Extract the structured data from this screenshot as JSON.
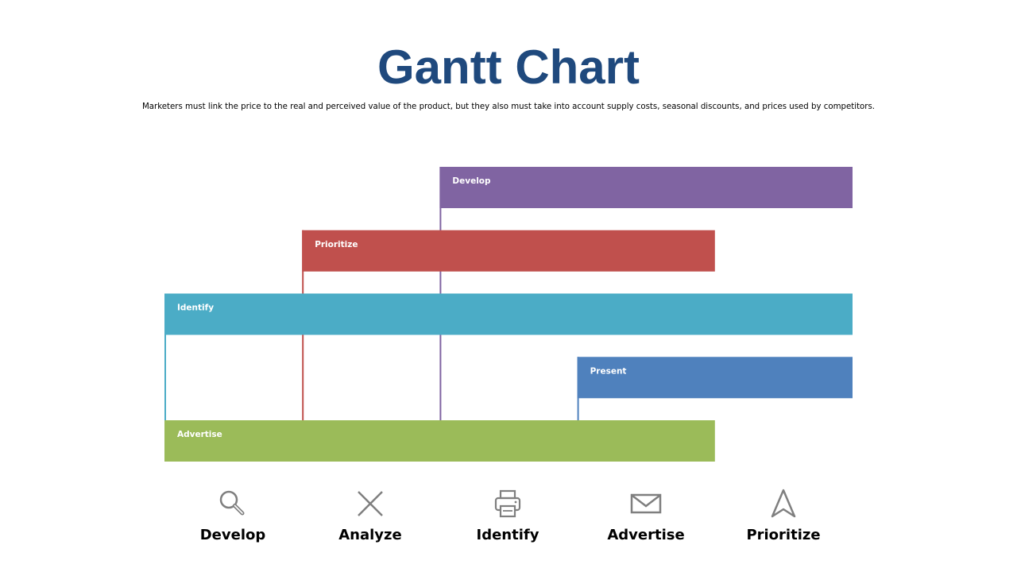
{
  "header": {
    "title": "Gantt Chart",
    "subtitle": "Marketers must link the price to the real and perceived value of the product, but they also must take into account supply costs, seasonal discounts, and prices used by competitors."
  },
  "chart_data": {
    "type": "bar",
    "orientation": "horizontal",
    "grid": false,
    "legend": "none",
    "columns": 5,
    "tasks": [
      {
        "label": "Develop",
        "start": 2,
        "end": 5,
        "color": "#8064A2"
      },
      {
        "label": "Prioritize",
        "start": 1,
        "end": 4,
        "color": "#C0504D"
      },
      {
        "label": "Identify",
        "start": 0,
        "end": 5,
        "color": "#4BACC6"
      },
      {
        "label": "Present",
        "start": 3,
        "end": 5,
        "color": "#4F81BD"
      },
      {
        "label": "Advertise",
        "start": 0,
        "end": 4,
        "color": "#9BBB59"
      }
    ]
  },
  "phases": [
    {
      "label": "Develop",
      "icon": "magnifier-icon"
    },
    {
      "label": "Analyze",
      "icon": "close-x-icon"
    },
    {
      "label": "Identify",
      "icon": "printer-icon"
    },
    {
      "label": "Advertise",
      "icon": "envelope-icon"
    },
    {
      "label": "Prioritize",
      "icon": "navigation-arrow-icon"
    }
  ],
  "colors": {
    "title": "#1F497D",
    "icon": "#7F7F7F"
  }
}
